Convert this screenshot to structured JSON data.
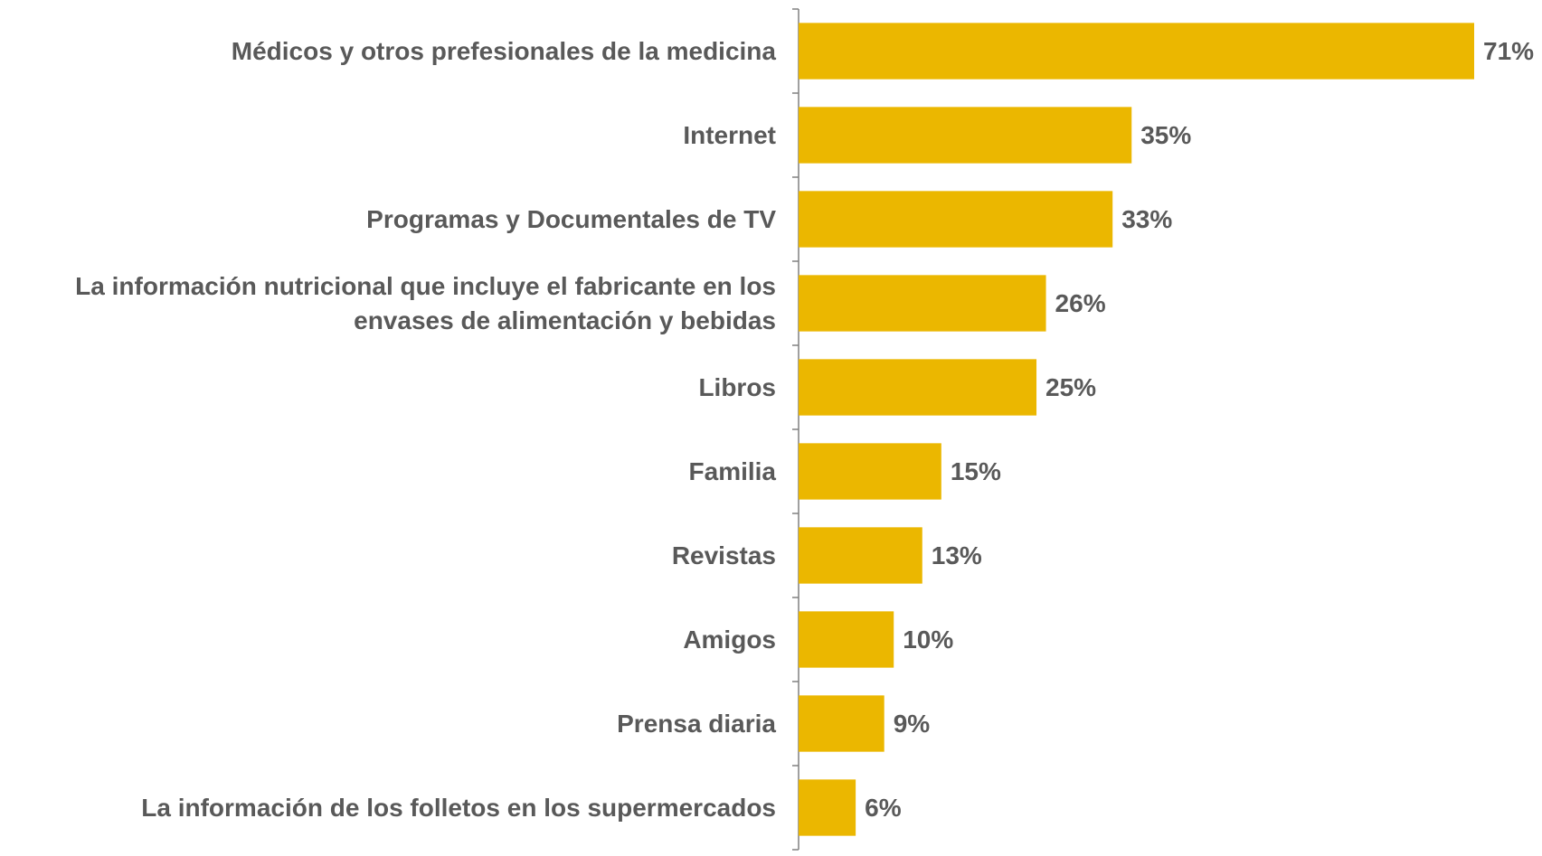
{
  "chart_data": {
    "type": "bar",
    "orientation": "horizontal",
    "color": "#ebb700",
    "categories": [
      "Médicos y otros prefesionales de la medicina",
      "Internet",
      "Programas y Documentales de TV",
      "La información nutricional que incluye el fabricante en los envases de alimentación y bebidas",
      "Libros",
      "Familia",
      "Revistas",
      "Amigos",
      "Prensa diaria",
      "La información de los folletos en los supermercados"
    ],
    "values": [
      71,
      35,
      33,
      26,
      25,
      15,
      13,
      10,
      9,
      6
    ],
    "value_labels": [
      "71%",
      "35%",
      "33%",
      "26%",
      "25%",
      "15%",
      "13%",
      "10%",
      "9%",
      "6%"
    ]
  }
}
